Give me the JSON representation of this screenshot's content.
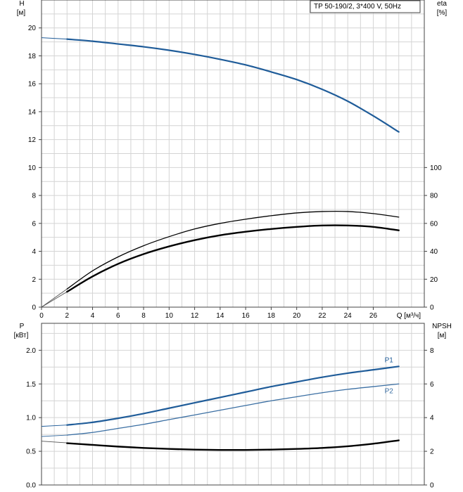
{
  "chart_data": [
    {
      "type": "line",
      "title": "TP 50-190/2, 3*400 V, 50Hz",
      "x_label": "Q [м³/ч]",
      "y_left_label": "H",
      "y_left_unit": "[м]",
      "y_right_label": "eta",
      "y_right_unit": "[%]",
      "x_ticks": [
        0,
        2,
        4,
        6,
        8,
        10,
        12,
        14,
        16,
        18,
        20,
        22,
        24,
        26
      ],
      "y_left_ticks": [
        0,
        2,
        4,
        6,
        8,
        10,
        12,
        14,
        16,
        18,
        20
      ],
      "y_right_ticks": [
        0,
        20,
        40,
        60,
        80,
        100
      ],
      "xlim": [
        0,
        30
      ],
      "ylim_left": [
        0,
        22
      ],
      "ylim_right": [
        0,
        220
      ],
      "grid": true,
      "series": [
        {
          "axis": "left",
          "color": "#1f5c99",
          "x_thin": [
            0,
            2
          ],
          "y_thin": [
            19.3,
            19.2
          ],
          "x": [
            2,
            4,
            6,
            8,
            10,
            12,
            14,
            16,
            18,
            20,
            22,
            24,
            26,
            28
          ],
          "y": [
            19.2,
            19.05,
            18.85,
            18.65,
            18.4,
            18.1,
            17.75,
            17.35,
            16.85,
            16.3,
            15.6,
            14.75,
            13.7,
            12.55
          ]
        },
        {
          "axis": "left",
          "color": "#000000",
          "x_thin": [
            0,
            2
          ],
          "y_thin": [
            0,
            1.3
          ],
          "x": [
            2,
            4,
            6,
            8,
            10,
            12,
            14,
            16,
            18,
            20,
            22,
            24,
            26,
            28
          ],
          "y": [
            1.3,
            2.6,
            3.6,
            4.4,
            5.05,
            5.6,
            6.0,
            6.3,
            6.55,
            6.75,
            6.85,
            6.85,
            6.7,
            6.45
          ],
          "width": 1.3
        },
        {
          "axis": "left",
          "color": "#000000",
          "x_thin": [
            0,
            2
          ],
          "y_thin": [
            0,
            1.1
          ],
          "x": [
            2,
            4,
            6,
            8,
            10,
            12,
            14,
            16,
            18,
            20,
            22,
            24,
            26,
            28
          ],
          "y": [
            1.1,
            2.2,
            3.1,
            3.8,
            4.35,
            4.8,
            5.15,
            5.4,
            5.6,
            5.75,
            5.85,
            5.85,
            5.75,
            5.5
          ],
          "width": 2.4
        }
      ]
    },
    {
      "type": "line",
      "x_label": "",
      "y_left_label": "P",
      "y_left_unit": "[кВт]",
      "y_right_label": "NPSH",
      "y_right_unit": "[м]",
      "y_left_ticks": [
        0.0,
        0.5,
        1.0,
        1.5,
        2.0
      ],
      "y_left_tick_labels": [
        "0.0",
        "0.5",
        "1.0",
        "1.5",
        "2.0"
      ],
      "y_right_ticks": [
        0,
        2,
        4,
        6,
        8
      ],
      "xlim": [
        0,
        30
      ],
      "ylim_left": [
        0,
        2.4
      ],
      "ylim_right": [
        0,
        9.6
      ],
      "grid": true,
      "series": [
        {
          "name": "P1",
          "axis": "left",
          "color": "#1f5c99",
          "x_thin": [
            0,
            2
          ],
          "y_thin": [
            0.87,
            0.89
          ],
          "x": [
            2,
            4,
            6,
            8,
            10,
            12,
            14,
            16,
            18,
            20,
            22,
            24,
            26,
            28
          ],
          "y": [
            0.89,
            0.93,
            0.99,
            1.06,
            1.14,
            1.22,
            1.3,
            1.38,
            1.46,
            1.53,
            1.6,
            1.66,
            1.71,
            1.76
          ],
          "width": 2.2
        },
        {
          "name": "P2",
          "axis": "left",
          "color": "#3b6fa3",
          "x_thin": [
            0,
            2
          ],
          "y_thin": [
            0.72,
            0.74
          ],
          "x": [
            2,
            4,
            6,
            8,
            10,
            12,
            14,
            16,
            18,
            20,
            22,
            24,
            26,
            28
          ],
          "y": [
            0.74,
            0.78,
            0.84,
            0.9,
            0.97,
            1.04,
            1.11,
            1.18,
            1.25,
            1.31,
            1.37,
            1.42,
            1.46,
            1.5
          ],
          "width": 1.3
        },
        {
          "axis": "right",
          "color": "#000000",
          "x_thin": [
            0,
            2
          ],
          "y_thin": [
            2.6,
            2.5
          ],
          "x": [
            2,
            4,
            6,
            8,
            10,
            12,
            14,
            16,
            18,
            20,
            22,
            24,
            26,
            28
          ],
          "y": [
            2.48,
            2.38,
            2.28,
            2.2,
            2.14,
            2.1,
            2.08,
            2.08,
            2.1,
            2.14,
            2.2,
            2.3,
            2.45,
            2.65
          ],
          "width": 2.4
        }
      ]
    }
  ]
}
